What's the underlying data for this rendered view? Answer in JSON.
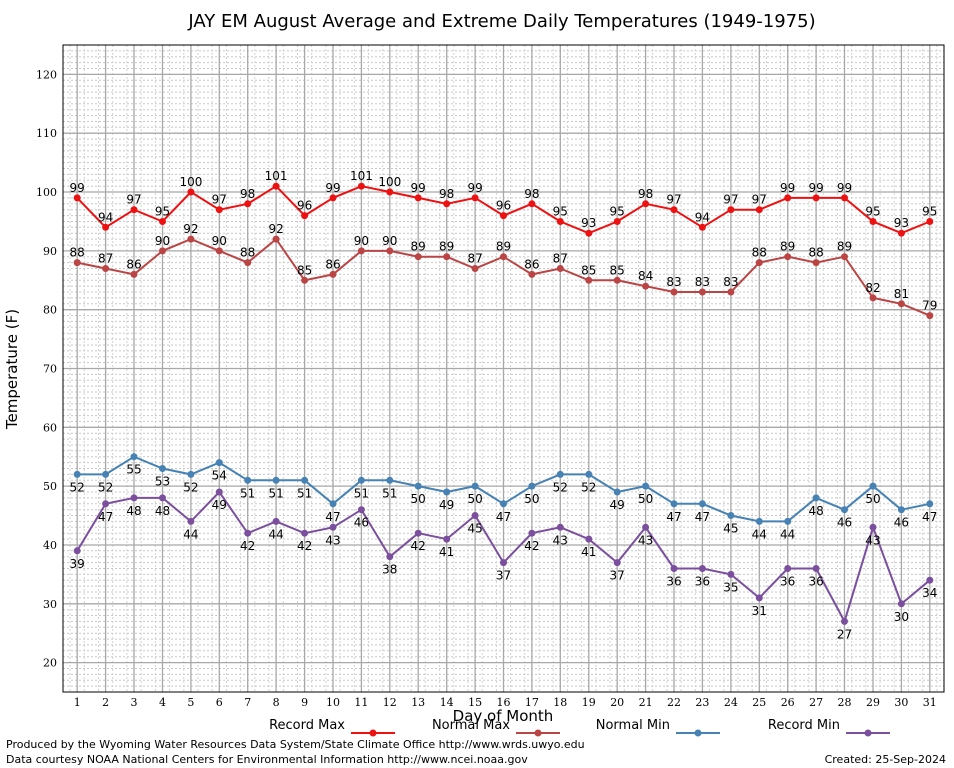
{
  "chart_data": {
    "type": "line",
    "title": "JAY EM August Average and Extreme Daily Temperatures (1949-1975)",
    "xlabel": "Day of Month",
    "ylabel": "Temperature (F)",
    "x": [
      1,
      2,
      3,
      4,
      5,
      6,
      7,
      8,
      9,
      10,
      11,
      12,
      13,
      14,
      15,
      16,
      17,
      18,
      19,
      20,
      21,
      22,
      23,
      24,
      25,
      26,
      27,
      28,
      29,
      30,
      31
    ],
    "xlim": [
      0.5,
      31.5
    ],
    "ylim": [
      15,
      125
    ],
    "yticks": [
      20,
      30,
      40,
      50,
      60,
      70,
      80,
      90,
      100,
      110,
      120
    ],
    "grid": true,
    "legend_position": "bottom",
    "series": [
      {
        "name": "Record Max",
        "color": "#ee1111",
        "label_position": "above",
        "values": [
          99,
          94,
          97,
          95,
          100,
          97,
          98,
          101,
          96,
          99,
          101,
          100,
          99,
          98,
          99,
          96,
          98,
          95,
          93,
          95,
          98,
          97,
          94,
          97,
          97,
          99,
          99,
          99,
          95,
          93,
          95
        ]
      },
      {
        "name": "Normal Max",
        "color": "#bb4444",
        "label_position": "above",
        "values": [
          88,
          87,
          86,
          90,
          92,
          90,
          88,
          92,
          85,
          86,
          90,
          90,
          89,
          89,
          87,
          89,
          86,
          87,
          85,
          85,
          84,
          83,
          83,
          83,
          88,
          89,
          88,
          89,
          82,
          81,
          79
        ]
      },
      {
        "name": "Normal Min",
        "color": "#4682b4",
        "label_position": "below",
        "values": [
          52,
          52,
          55,
          53,
          52,
          54,
          51,
          51,
          51,
          47,
          51,
          51,
          50,
          49,
          50,
          47,
          50,
          52,
          52,
          49,
          50,
          47,
          47,
          45,
          44,
          44,
          48,
          46,
          50,
          46,
          47
        ]
      },
      {
        "name": "Record Min",
        "color": "#7b4f9d",
        "label_position": "below",
        "values": [
          39,
          47,
          48,
          48,
          44,
          49,
          42,
          44,
          42,
          43,
          46,
          38,
          42,
          41,
          45,
          37,
          42,
          43,
          41,
          37,
          43,
          36,
          36,
          35,
          31,
          36,
          36,
          27,
          43,
          30,
          34
        ]
      }
    ]
  },
  "footer": {
    "line1": "Produced by the Wyoming Water Resources Data System/State Climate Office http://www.wrds.uwyo.edu",
    "line2": "Data courtesy NOAA National Centers for Environmental Information http://www.ncei.noaa.gov",
    "created": "Created:  25-Sep-2024"
  }
}
